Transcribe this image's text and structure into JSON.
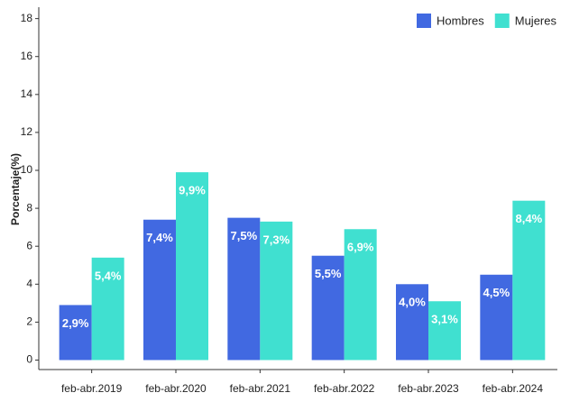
{
  "chart_data": {
    "type": "bar",
    "y_label": "Porcentaje(%)",
    "categories": [
      "feb-abr.2019",
      "feb-abr.2020",
      "feb-abr.2021",
      "feb-abr.2022",
      "feb-abr.2023",
      "feb-abr.2024"
    ],
    "series": [
      {
        "name": "Hombres",
        "color": "#4169e1",
        "values": [
          2.9,
          7.4,
          7.5,
          5.5,
          4.0,
          4.5
        ],
        "value_labels": [
          "2,9%",
          "7,4%",
          "7,5%",
          "5,5%",
          "4,0%",
          "4,5%"
        ]
      },
      {
        "name": "Mujeres",
        "color": "#40e0d0",
        "values": [
          5.4,
          9.9,
          7.3,
          6.9,
          3.1,
          8.4
        ],
        "value_labels": [
          "5,4%",
          "9,9%",
          "7,3%",
          "6,9%",
          "3,1%",
          "8,4%"
        ]
      }
    ],
    "ylim": [
      -0.5,
      18.6
    ],
    "yticks": [
      0,
      2,
      4,
      6,
      8,
      10,
      12,
      14,
      16,
      18
    ],
    "legend": "top-right",
    "grid": false
  }
}
